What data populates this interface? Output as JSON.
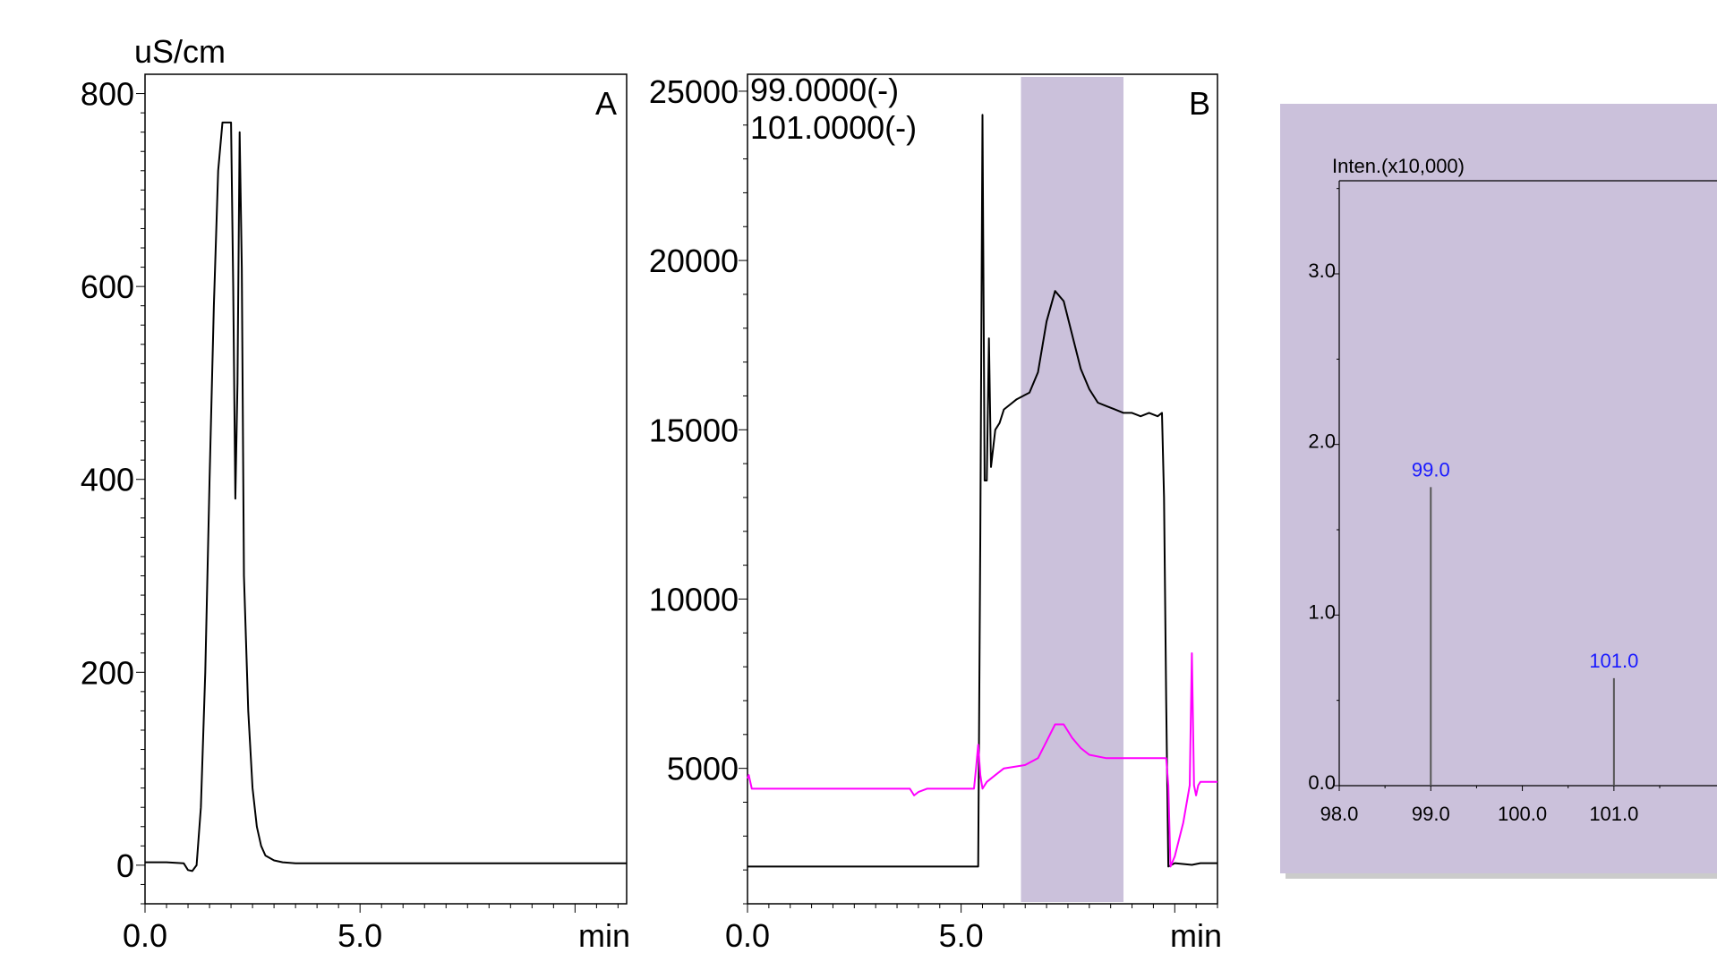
{
  "colors": {
    "trace_black": "#000000",
    "trace_magenta": "#ff00ff",
    "shade": "#cbc1db",
    "label_blue": "#1a1aff"
  },
  "chart_data": [
    {
      "type": "line",
      "panel_letter": "A",
      "ylabel": "uS/cm",
      "x_unit_label": "min",
      "x_tick_labels": [
        "0.0",
        "5.0"
      ],
      "y_tick_labels": [
        "0",
        "200",
        "400",
        "600",
        "800"
      ],
      "xlim": [
        0,
        11.2
      ],
      "ylim": [
        -40,
        820
      ],
      "series": [
        {
          "color": "#000000",
          "x": [
            0,
            0.5,
            0.9,
            1.0,
            1.1,
            1.2,
            1.3,
            1.4,
            1.5,
            1.6,
            1.7,
            1.8,
            1.9,
            2.0,
            2.05,
            2.1,
            2.15,
            2.2,
            2.25,
            2.3,
            2.4,
            2.5,
            2.6,
            2.7,
            2.8,
            3.0,
            3.2,
            3.5,
            4,
            5,
            6,
            7,
            8,
            9,
            10,
            11.2
          ],
          "y": [
            3,
            3,
            2,
            -5,
            -6,
            0,
            60,
            200,
            400,
            580,
            720,
            770,
            770,
            770,
            600,
            380,
            500,
            760,
            620,
            300,
            160,
            80,
            40,
            20,
            10,
            5,
            3,
            2,
            2,
            2,
            2,
            2,
            2,
            2,
            2,
            2
          ]
        }
      ]
    },
    {
      "type": "line",
      "panel_letter": "B",
      "x_unit_label": "min",
      "x_tick_labels": [
        "0.0",
        "5.0"
      ],
      "y_tick_labels": [
        "5000",
        "10000",
        "15000",
        "20000",
        "25000"
      ],
      "xlim": [
        0,
        11
      ],
      "ylim": [
        1000,
        25500
      ],
      "highlight_range": [
        6.4,
        8.8
      ],
      "series": [
        {
          "name": "99.0000(-)",
          "color": "#000000",
          "x": [
            0,
            5.4,
            5.45,
            5.5,
            5.55,
            5.6,
            5.65,
            5.7,
            5.8,
            5.9,
            6.0,
            6.3,
            6.6,
            6.8,
            7.0,
            7.2,
            7.4,
            7.6,
            7.8,
            8.0,
            8.2,
            8.4,
            8.6,
            8.8,
            9.0,
            9.2,
            9.4,
            9.6,
            9.7,
            9.75,
            9.8,
            9.85,
            10.0,
            10.4,
            10.6,
            10.8,
            11
          ],
          "y": [
            2100,
            2100,
            12000,
            24300,
            13500,
            13500,
            17700,
            13900,
            15000,
            15200,
            15600,
            15900,
            16100,
            16700,
            18200,
            19100,
            18800,
            17800,
            16800,
            16200,
            15800,
            15700,
            15600,
            15500,
            15500,
            15400,
            15500,
            15400,
            15500,
            13000,
            7000,
            2100,
            2200,
            2150,
            2200,
            2200,
            2200
          ]
        },
        {
          "name": "101.0000(-)",
          "color": "#ff00ff",
          "x": [
            0,
            0.03,
            0.1,
            3.8,
            3.9,
            4.0,
            4.2,
            5.3,
            5.35,
            5.4,
            5.45,
            5.5,
            5.6,
            5.8,
            6.0,
            6.5,
            6.8,
            7.0,
            7.2,
            7.4,
            7.6,
            7.8,
            8.0,
            8.4,
            8.8,
            9.2,
            9.8,
            9.85,
            9.9,
            10.0,
            10.2,
            10.35,
            10.4,
            10.45,
            10.5,
            10.55,
            10.6,
            10.7,
            10.8,
            11
          ],
          "y": [
            4700,
            4800,
            4400,
            4400,
            4200,
            4300,
            4400,
            4400,
            5000,
            5700,
            4800,
            4400,
            4600,
            4800,
            5000,
            5100,
            5300,
            5800,
            6300,
            6300,
            5900,
            5600,
            5400,
            5300,
            5300,
            5300,
            5300,
            4500,
            2100,
            2400,
            3400,
            4500,
            8400,
            4500,
            4200,
            4500,
            4600,
            4600,
            4600,
            4600
          ]
        }
      ]
    },
    {
      "type": "bar",
      "ylabel": "Inten.(x10,000)",
      "x_tick_labels": [
        "98.0",
        "99.0",
        "100.0",
        "101.0"
      ],
      "y_tick_labels": [
        "0.0",
        "1.0",
        "2.0",
        "3.0"
      ],
      "xlim": [
        98,
        101.5
      ],
      "ylim": [
        0,
        3.5
      ],
      "categories": [
        "99.0",
        "101.0"
      ],
      "x": [
        99.0,
        101.0
      ],
      "values": [
        1.75,
        0.63
      ],
      "peak_labels": [
        "99.0",
        "101.0"
      ]
    }
  ]
}
